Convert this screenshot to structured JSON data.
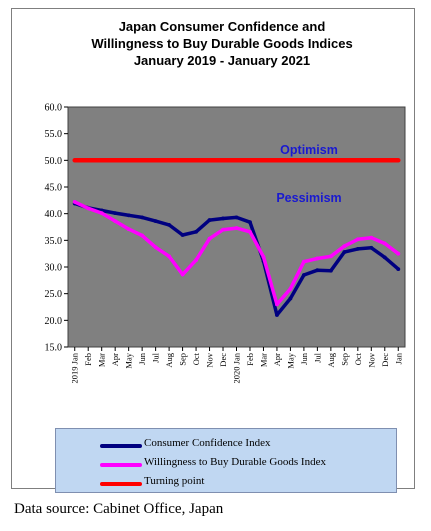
{
  "chart_data": {
    "type": "line",
    "title_lines": [
      "Japan Consumer Confidence and",
      "Willingness to Buy Durable Goods Indices",
      "January 2019 - January 2021"
    ],
    "categories": [
      "2019 Jan",
      "Feb",
      "Mar",
      "Apr",
      "May",
      "Jun",
      "Jul",
      "Aug",
      "Sep",
      "Oct",
      "Nov",
      "Dec",
      "2020 Jan",
      "Feb",
      "Mar",
      "Apr",
      "May",
      "Jun",
      "Jul",
      "Aug",
      "Sep",
      "Oct",
      "Nov",
      "Dec",
      "Jan"
    ],
    "ytick_labels": [
      "60.0",
      "55.0",
      "50.0",
      "45.0",
      "40.0",
      "35.0",
      "30.0",
      "25.0",
      "20.0",
      "15.0"
    ],
    "ylim": [
      15,
      60
    ],
    "series": [
      {
        "name": "Consumer Confidence Index",
        "color": "#000080",
        "values": [
          41.9,
          41.1,
          40.6,
          40.1,
          39.7,
          39.3,
          38.6,
          37.9,
          36.0,
          36.6,
          38.8,
          39.1,
          39.3,
          38.4,
          31.1,
          21.0,
          24.1,
          28.5,
          29.4,
          29.3,
          32.8,
          33.4,
          33.6,
          31.8,
          29.6
        ]
      },
      {
        "name": "Willingness to Buy Durable Goods Index",
        "color": "#ff00ff",
        "values": [
          42.2,
          41.0,
          40.1,
          38.6,
          37.1,
          35.9,
          33.7,
          32.0,
          28.6,
          31.3,
          35.3,
          37.0,
          37.3,
          36.6,
          31.9,
          23.0,
          25.9,
          31.0,
          31.6,
          32.0,
          33.9,
          35.2,
          35.5,
          34.4,
          32.5
        ]
      },
      {
        "name": "Turning point",
        "color": "#ff0000",
        "values": [
          50,
          50,
          50,
          50,
          50,
          50,
          50,
          50,
          50,
          50,
          50,
          50,
          50,
          50,
          50,
          50,
          50,
          50,
          50,
          50,
          50,
          50,
          50,
          50,
          50
        ]
      }
    ],
    "annotations": {
      "optimism": "Optimism",
      "pessimism": "Pessimism"
    },
    "plot_background": "#808080",
    "annotation_color": "#1a1ad0"
  },
  "legend": {
    "background": "#c0d7f2",
    "items": [
      {
        "label": "Consumer Confidence Index",
        "color": "#000080"
      },
      {
        "label": "Willingness to Buy Durable Goods Index",
        "color": "#ff00ff"
      },
      {
        "label": "Turning point",
        "color": "#ff0000"
      }
    ]
  },
  "source_note": "Data source: Cabinet Office, Japan"
}
